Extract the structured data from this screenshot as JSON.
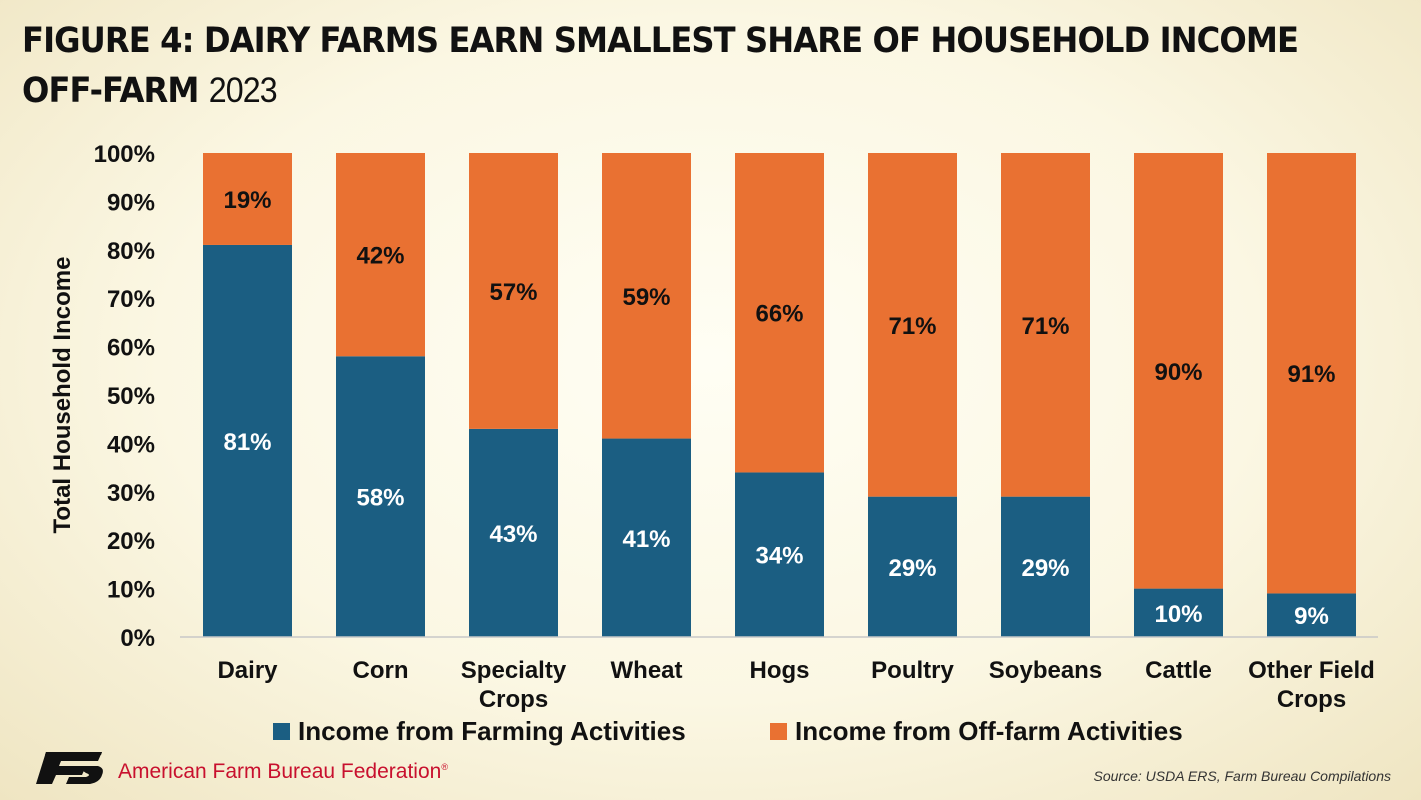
{
  "title": {
    "line1": "FIGURE 4: DAIRY FARMS EARN SMALLEST SHARE OF HOUSEHOLD INCOME",
    "line2": "OFF-FARM",
    "year": "2023"
  },
  "colors": {
    "farming": "#1b5e82",
    "offfarm": "#e97132",
    "org_red": "#c8102e"
  },
  "chart_data": {
    "type": "bar",
    "stacked": true,
    "ylabel": "Total Household Income",
    "ylim": [
      0,
      100
    ],
    "yticks": [
      "0%",
      "10%",
      "20%",
      "30%",
      "40%",
      "50%",
      "60%",
      "70%",
      "80%",
      "90%",
      "100%"
    ],
    "categories": [
      [
        "Dairy"
      ],
      [
        "Corn"
      ],
      [
        "Specialty",
        "Crops"
      ],
      [
        "Wheat"
      ],
      [
        "Hogs"
      ],
      [
        "Poultry"
      ],
      [
        "Soybeans"
      ],
      [
        "Cattle"
      ],
      [
        "Other Field",
        "Crops"
      ]
    ],
    "series": [
      {
        "name": "Income from Farming Activities",
        "values": [
          81,
          58,
          43,
          41,
          34,
          29,
          29,
          10,
          9
        ],
        "labels": [
          "81%",
          "58%",
          "43%",
          "41%",
          "34%",
          "29%",
          "29%",
          "10%",
          "9%"
        ]
      },
      {
        "name": "Income from Off-farm Activities",
        "values": [
          19,
          42,
          57,
          59,
          66,
          71,
          71,
          90,
          91
        ],
        "labels": [
          "19%",
          "42%",
          "57%",
          "59%",
          "66%",
          "71%",
          "71%",
          "90%",
          "91%"
        ]
      }
    ],
    "legend_position": "bottom",
    "grid": false
  },
  "footer": {
    "org": "American Farm Bureau Federation",
    "org_mark": "®",
    "source": "Source: USDA ERS, Farm Bureau Compilations"
  }
}
